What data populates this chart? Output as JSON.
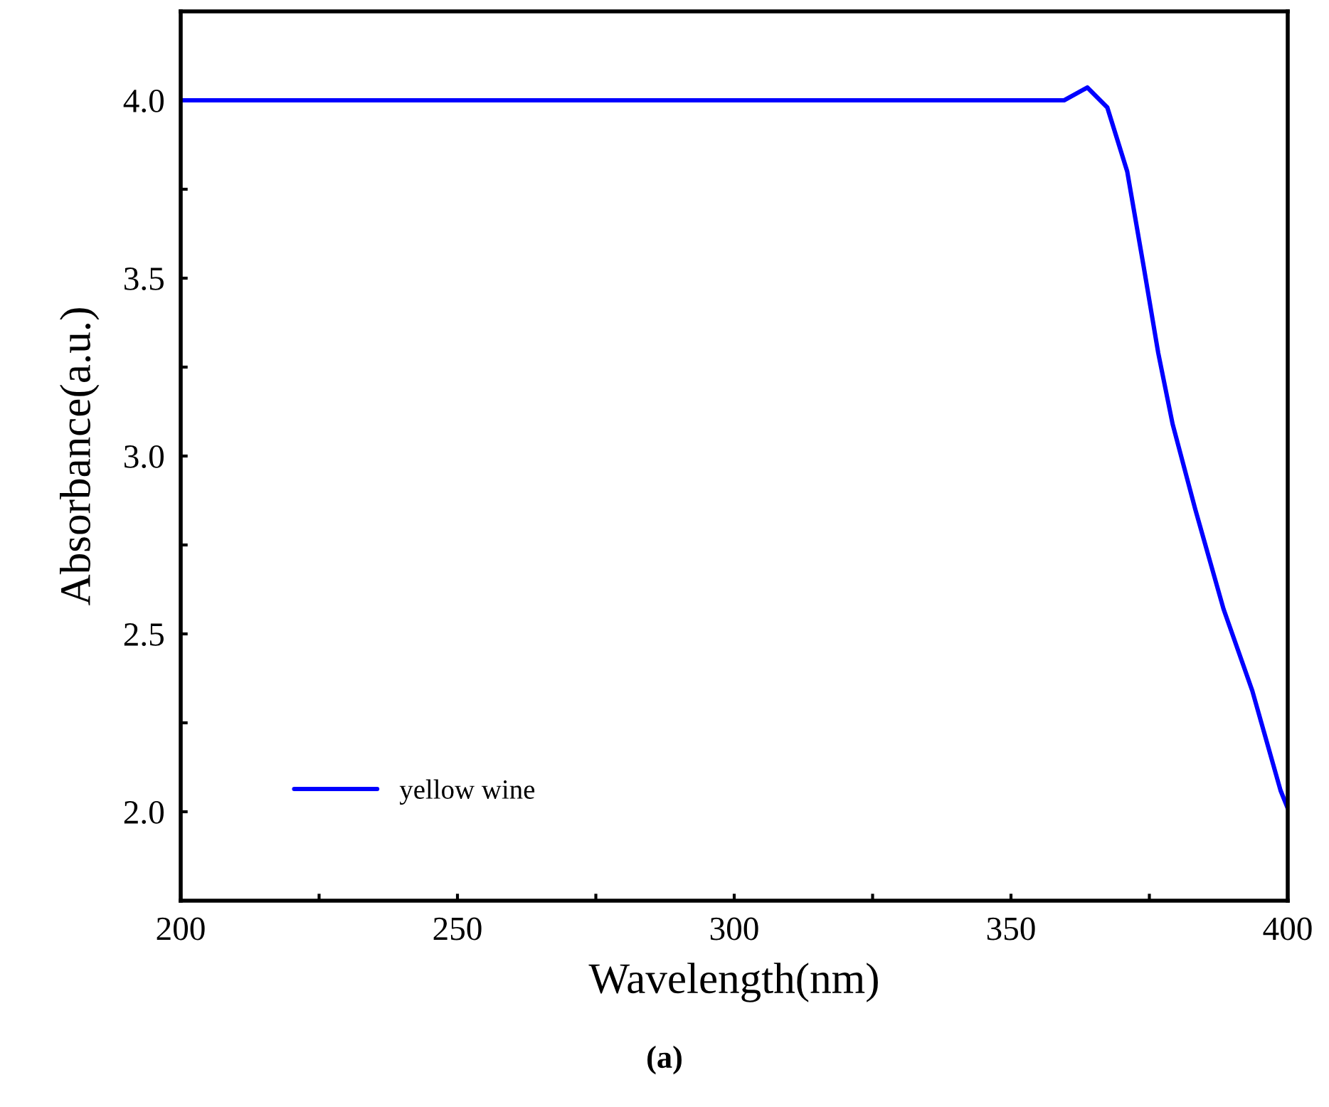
{
  "chart_data": {
    "type": "line",
    "xlabel": "Wavelength(nm)",
    "ylabel": "Absorbance(a.u.)",
    "xlim": [
      200,
      400
    ],
    "ylim": [
      1.75,
      4.25
    ],
    "xticks": [
      200,
      {
        "value": 225,
        "label": null
      },
      250,
      {
        "value": 275,
        "label": null
      },
      300,
      {
        "value": 325,
        "label": null
      },
      350,
      {
        "value": 375,
        "label": null
      },
      400
    ],
    "yticks": [
      {
        "value": 2.0,
        "label": "2.0"
      },
      {
        "value": 2.25,
        "label": null
      },
      2.5,
      {
        "value": 2.75,
        "label": null
      },
      {
        "value": 3.0,
        "label": "3.0"
      },
      {
        "value": 3.25,
        "label": null
      },
      3.5,
      {
        "value": 3.75,
        "label": null
      },
      {
        "value": 4.0,
        "label": "4.0"
      }
    ],
    "grid": false,
    "legend": "bottom left",
    "line_style": "solid",
    "marker": "none",
    "annotations": [
      "(a)"
    ],
    "series": [
      {
        "name": "yellow wine",
        "color": "#0000ff",
        "x": [
          200,
          250,
          300,
          350,
          359.6,
          363.8,
          367.4,
          371,
          374,
          376.6,
          379.2,
          383.3,
          388.4,
          393.6,
          398.7,
          400
        ],
        "values": [
          4.0,
          4.0,
          4.0,
          4.0,
          4.0,
          4.036,
          3.98,
          3.8,
          3.53,
          3.29,
          3.09,
          2.85,
          2.57,
          2.34,
          2.06,
          2.01
        ]
      }
    ]
  }
}
